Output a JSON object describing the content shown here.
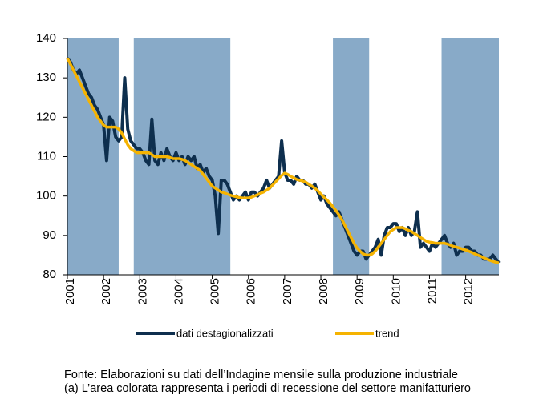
{
  "chart_data": {
    "type": "line",
    "categories": [
      "2001",
      null,
      null,
      null,
      null,
      null,
      null,
      null,
      null,
      null,
      null,
      null,
      "2002",
      null,
      null,
      null,
      null,
      null,
      null,
      null,
      null,
      null,
      null,
      null,
      "2003",
      null,
      null,
      null,
      null,
      null,
      null,
      null,
      null,
      null,
      null,
      null,
      "2004",
      null,
      null,
      null,
      null,
      null,
      null,
      null,
      null,
      null,
      null,
      null,
      "2005",
      null,
      null,
      null,
      null,
      null,
      null,
      null,
      null,
      null,
      null,
      null,
      "2006",
      null,
      null,
      null,
      null,
      null,
      null,
      null,
      null,
      null,
      null,
      null,
      "2007",
      null,
      null,
      null,
      null,
      null,
      null,
      null,
      null,
      null,
      null,
      null,
      "2008",
      null,
      null,
      null,
      null,
      null,
      null,
      null,
      null,
      null,
      null,
      null,
      "2009",
      null,
      null,
      null,
      null,
      null,
      null,
      null,
      null,
      null,
      null,
      null,
      "2010",
      null,
      null,
      null,
      null,
      null,
      null,
      null,
      null,
      null,
      null,
      null,
      "2011",
      null,
      null,
      null,
      null,
      null,
      null,
      null,
      null,
      null,
      null,
      null,
      "2012",
      null,
      null,
      null,
      null,
      null,
      null,
      null,
      null,
      null,
      null,
      null
    ],
    "series": [
      {
        "name": "dati destagionalizzati",
        "color": "#0e2f4e",
        "values": [
          135,
          134,
          132,
          131,
          132,
          130,
          128,
          126,
          125,
          123,
          122,
          120,
          118,
          109,
          120,
          119,
          115,
          114,
          115,
          130,
          117,
          114,
          113,
          112,
          112,
          111,
          109,
          108,
          119.5,
          109,
          108,
          111,
          109,
          112,
          110,
          109,
          111,
          109,
          110,
          108,
          110,
          109,
          110,
          107,
          108,
          106,
          107,
          105,
          104,
          100,
          90.5,
          104,
          104,
          103,
          101,
          99,
          100,
          99,
          100,
          101,
          99,
          101,
          101,
          100,
          101,
          102,
          104,
          102,
          103,
          104,
          105,
          114,
          106,
          104,
          104,
          103,
          105,
          104,
          104,
          103,
          103,
          102,
          103,
          101,
          99,
          100,
          98,
          97,
          96,
          95,
          96,
          94,
          92,
          90,
          88,
          86,
          85,
          86,
          86,
          84,
          85,
          86,
          87,
          89,
          85,
          90,
          92,
          92,
          93,
          93,
          91,
          92,
          90,
          92,
          90,
          91,
          96,
          87,
          88,
          87,
          86,
          88,
          87,
          88,
          89,
          90,
          88,
          87,
          88,
          85,
          86,
          86,
          87,
          87,
          86,
          86,
          85,
          85,
          84,
          84,
          84,
          85,
          84,
          83
        ]
      },
      {
        "name": "trend",
        "color": "#f5b301",
        "values": [
          135,
          133.5,
          132,
          130.5,
          129,
          127.5,
          126,
          124.5,
          123,
          121.5,
          120,
          119,
          118,
          117.5,
          117.5,
          117.5,
          117.5,
          117,
          116,
          114.5,
          113,
          112,
          111.5,
          111,
          111,
          111,
          111,
          111,
          110.5,
          110,
          110,
          110,
          110,
          110,
          109.8,
          109.5,
          109.5,
          109.5,
          109.3,
          109,
          108.5,
          108,
          107.5,
          107,
          106.5,
          105.5,
          104.5,
          103.5,
          102.5,
          102,
          101.5,
          101,
          100.8,
          100.5,
          100.2,
          100,
          99.8,
          99.6,
          99.5,
          99.5,
          99.5,
          99.7,
          100,
          100.3,
          100.7,
          101,
          101.5,
          102,
          102.8,
          103.6,
          104.4,
          105.2,
          105.8,
          105.5,
          105,
          104.6,
          104.2,
          104,
          103.8,
          103.5,
          103,
          102.5,
          102,
          101.3,
          100.5,
          99.7,
          99,
          98.2,
          97.3,
          96.3,
          95.2,
          94,
          92.5,
          91,
          89.5,
          88,
          86.8,
          86,
          85.3,
          85,
          85,
          85.3,
          86,
          87,
          88,
          89,
          90,
          91,
          91.5,
          92,
          92,
          92,
          91.7,
          91.3,
          91,
          90.5,
          90,
          89.5,
          89,
          88.5,
          88.3,
          88.2,
          88,
          88,
          88,
          88,
          87.8,
          87.5,
          87.2,
          87,
          86.8,
          86.5,
          86.3,
          86,
          85.7,
          85.3,
          85,
          84.7,
          84.3,
          84,
          83.7,
          83.4,
          83.2,
          83
        ]
      }
    ],
    "recession_periods": [
      [
        0,
        17
      ],
      [
        22,
        54
      ],
      [
        88,
        100
      ],
      [
        124,
        143
      ]
    ],
    "recession_color": "#88aac8",
    "ylim": [
      80,
      140
    ],
    "yticks": [
      80,
      90,
      100,
      110,
      120,
      130,
      140
    ],
    "notes": [
      "Fonte: Elaborazioni su dati dell’Indagine mensile sulla produzione industriale",
      "(a) L’area colorata rappresenta i periodi di recessione del settore manifatturiero"
    ]
  }
}
